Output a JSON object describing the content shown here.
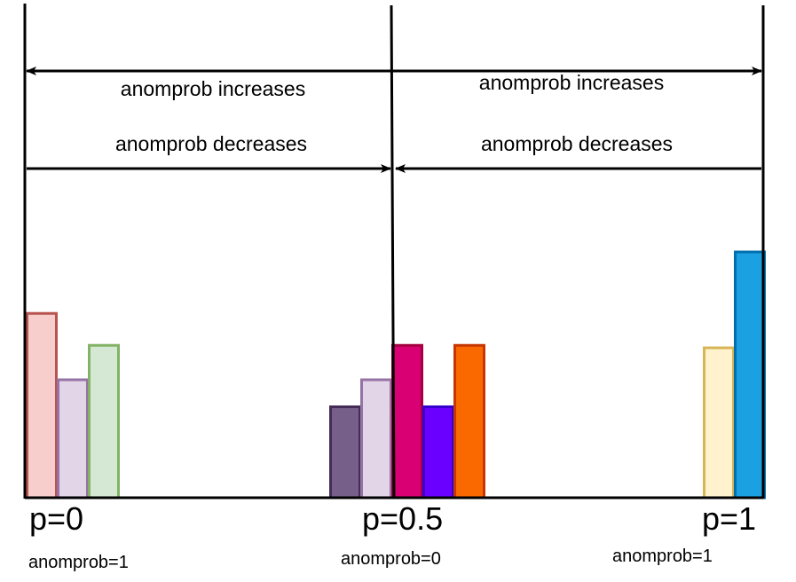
{
  "arrows": {
    "top_left_label": "anomprob increases",
    "top_right_label": "anomprob increases",
    "bottom_left_label": "anomprob decreases",
    "bottom_right_label": "anomprob decreases"
  },
  "markers": [
    {
      "p_label": "p=0",
      "anom_label": "anomprob=1"
    },
    {
      "p_label": "p=0.5",
      "anom_label": "anomprob=0"
    },
    {
      "p_label": "p=1",
      "anom_label": "anomprob=1"
    }
  ],
  "chart_data": {
    "type": "bar",
    "x": [
      0,
      0.5,
      1
    ],
    "xlabel": "p",
    "ylabel": "",
    "ylim": [
      0,
      1
    ],
    "bar_groups": [
      {
        "name": "p=0",
        "bars": [
          {
            "value": 0.75,
            "fill": "#F8CECC",
            "stroke": "#B85450"
          },
          {
            "value": 0.48,
            "fill": "#E1D5E7",
            "stroke": "#9673A6"
          },
          {
            "value": 0.62,
            "fill": "#D5E8D4",
            "stroke": "#82B366"
          }
        ]
      },
      {
        "name": "p=0.5",
        "bars": [
          {
            "value": 0.37,
            "fill": "#76608A",
            "stroke": "#432D57"
          },
          {
            "value": 0.48,
            "fill": "#E1D5E7",
            "stroke": "#9673A6"
          },
          {
            "value": 0.62,
            "fill": "#D80073",
            "stroke": "#A50040"
          },
          {
            "value": 0.37,
            "fill": "#6A00FF",
            "stroke": "#3700CC"
          },
          {
            "value": 0.62,
            "fill": "#FA6800",
            "stroke": "#C73500"
          }
        ]
      },
      {
        "name": "p=1",
        "bars": [
          {
            "value": 0.61,
            "fill": "#FFF2CC",
            "stroke": "#D6B656"
          },
          {
            "value": 1.0,
            "fill": "#1BA1E2",
            "stroke": "#006EAF"
          }
        ]
      }
    ]
  }
}
